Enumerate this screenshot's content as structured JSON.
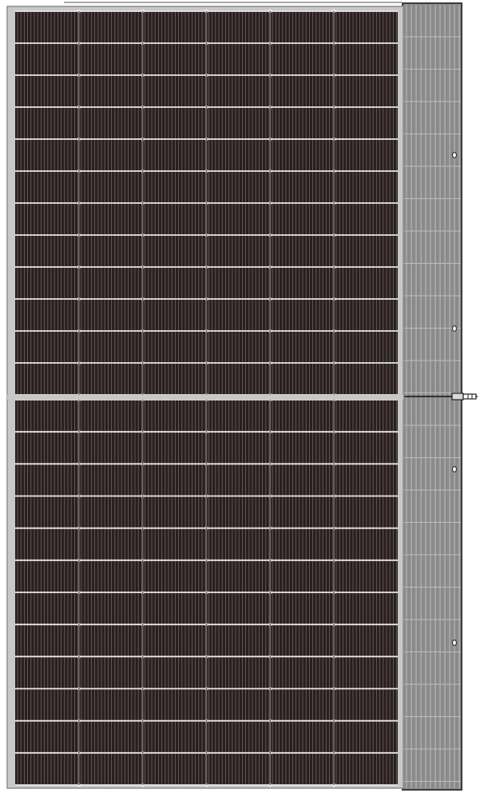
{
  "image": {
    "subject": "solar-panel",
    "colors": {
      "frame": "#c8c8c8",
      "frame_edge": "#8e8e8e",
      "cell": "#2a1f1f",
      "cell_line": "#6f6464",
      "busbar": "#e9e9e9",
      "side": "#8a8a8a",
      "side_dark": "#3c3c3c",
      "side_light": "#bdbdbd"
    },
    "panel": {
      "cell_columns": 6,
      "cell_rows_per_half": 12,
      "halves": 2
    },
    "side_strip": {
      "mounting_holes": 4,
      "junction_connector": true
    }
  }
}
